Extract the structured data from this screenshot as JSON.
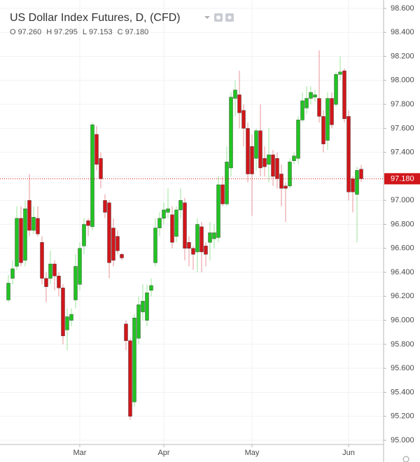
{
  "chart_data": {
    "type": "candlestick",
    "title": "US Dollar Index Futures, D, (CFD)",
    "legend": [
      {
        "key": "O",
        "value": 97.26,
        "label": "97.260"
      },
      {
        "key": "H",
        "value": 97.295,
        "label": "97.295"
      },
      {
        "key": "L",
        "value": 97.153,
        "label": "97.153"
      },
      {
        "key": "C",
        "value": 97.18,
        "label": "97.180"
      }
    ],
    "categories": [
      null,
      null,
      null,
      null,
      null,
      null,
      null,
      null,
      null,
      null,
      null,
      null,
      null,
      null,
      null,
      null,
      null,
      "Mar",
      null,
      null,
      null,
      null,
      null,
      null,
      null,
      null,
      null,
      null,
      null,
      null,
      null,
      null,
      null,
      null,
      null,
      null,
      null,
      "Apr",
      null,
      null,
      null,
      null,
      null,
      null,
      null,
      null,
      null,
      null,
      null,
      null,
      null,
      null,
      null,
      null,
      null,
      null,
      null,
      null,
      "May",
      null,
      null,
      null,
      null,
      null,
      null,
      null,
      null,
      null,
      null,
      null,
      null,
      null,
      null,
      null,
      null,
      null,
      null,
      null,
      null,
      null,
      null,
      "Jun",
      null,
      null,
      null
    ],
    "open": [
      96.17,
      96.35,
      96.45,
      96.85,
      96.5,
      97.0,
      96.75,
      96.85,
      96.65,
      96.35,
      96.35,
      96.47,
      96.37,
      96.27,
      95.92,
      96.0,
      96.17,
      96.3,
      96.62,
      96.83,
      96.78,
      97.55,
      97.35,
      97.0,
      96.98,
      96.77,
      96.7,
      96.55,
      95.97,
      95.83,
      95.32,
      95.85,
      96.07,
      96.0,
      96.25,
      96.48,
      96.77,
      96.85,
      96.9,
      96.88,
      96.7,
      96.92,
      96.98,
      96.65,
      96.6,
      96.57,
      96.78,
      96.62,
      96.65,
      96.68,
      96.69,
      97.13,
      96.97,
      97.27,
      97.85,
      97.88,
      97.75,
      97.6,
      97.45,
      97.35,
      97.58,
      97.35,
      97.3,
      97.38,
      97.35,
      97.22,
      97.12,
      97.12,
      97.33,
      97.35,
      97.67,
      97.77,
      97.85,
      97.86,
      97.85,
      97.7,
      97.5,
      97.85,
      97.8,
      98.05,
      98.08,
      97.7,
      97.18,
      97.05,
      97.26
    ],
    "high": [
      96.38,
      96.5,
      96.95,
      96.95,
      97.0,
      97.22,
      96.95,
      96.95,
      96.7,
      96.4,
      96.58,
      96.5,
      96.4,
      96.3,
      96.1,
      96.1,
      96.55,
      96.65,
      96.85,
      96.85,
      97.65,
      97.62,
      97.4,
      97.05,
      97.0,
      96.85,
      96.75,
      96.56,
      96.0,
      95.85,
      96.05,
      96.2,
      96.3,
      96.3,
      96.35,
      96.85,
      96.9,
      96.98,
      97.1,
      96.95,
      96.95,
      97.1,
      97.02,
      96.7,
      96.62,
      96.85,
      96.82,
      96.65,
      96.82,
      96.8,
      97.2,
      97.2,
      97.45,
      97.9,
      98.0,
      98.08,
      97.8,
      97.65,
      97.55,
      97.6,
      97.8,
      97.45,
      97.6,
      97.42,
      97.4,
      97.3,
      97.15,
      97.35,
      97.4,
      97.7,
      97.9,
      97.95,
      97.95,
      97.92,
      98.25,
      97.75,
      97.9,
      97.9,
      98.07,
      98.2,
      98.1,
      97.75,
      97.2,
      97.28,
      97.295
    ],
    "low": [
      96.15,
      96.3,
      96.42,
      96.45,
      96.45,
      96.7,
      96.72,
      96.7,
      96.3,
      96.15,
      96.3,
      96.25,
      96.2,
      95.8,
      95.75,
      95.95,
      96.1,
      96.25,
      96.55,
      96.7,
      96.75,
      97.25,
      97.1,
      96.85,
      96.35,
      96.45,
      96.55,
      96.5,
      95.75,
      95.17,
      95.28,
      95.8,
      96.0,
      95.95,
      96.2,
      96.45,
      96.7,
      96.8,
      96.85,
      96.6,
      96.65,
      96.85,
      96.5,
      96.45,
      96.42,
      96.4,
      96.4,
      96.45,
      96.5,
      96.6,
      96.65,
      96.95,
      96.95,
      97.2,
      97.7,
      97.6,
      97.45,
      97.15,
      96.87,
      97.25,
      97.2,
      97.2,
      97.15,
      97.12,
      97.1,
      96.95,
      96.82,
      97.1,
      97.3,
      97.3,
      97.65,
      97.72,
      97.8,
      97.82,
      97.65,
      97.4,
      97.42,
      97.6,
      97.78,
      98.0,
      97.65,
      97.0,
      96.9,
      96.65,
      97.153
    ],
    "close": [
      96.31,
      96.43,
      96.85,
      96.48,
      96.93,
      96.75,
      96.86,
      96.72,
      96.35,
      96.28,
      96.47,
      96.37,
      96.27,
      95.87,
      96.03,
      96.05,
      96.45,
      96.6,
      96.8,
      96.79,
      97.63,
      97.3,
      97.18,
      96.9,
      96.48,
      96.5,
      96.58,
      96.52,
      95.83,
      95.2,
      96.02,
      96.13,
      96.16,
      96.23,
      96.29,
      96.77,
      96.85,
      96.92,
      96.93,
      96.65,
      96.92,
      97.0,
      96.6,
      96.6,
      96.55,
      96.8,
      96.57,
      96.55,
      96.73,
      96.73,
      97.13,
      96.97,
      97.32,
      97.86,
      97.92,
      97.73,
      97.6,
      97.22,
      97.22,
      97.58,
      97.27,
      97.28,
      97.38,
      97.2,
      97.18,
      97.1,
      97.1,
      97.32,
      97.37,
      97.67,
      97.83,
      97.85,
      97.9,
      97.88,
      97.7,
      97.47,
      97.85,
      97.63,
      98.05,
      98.07,
      97.68,
      97.07,
      97.07,
      97.25,
      97.18
    ],
    "up_color": "#22c322",
    "down_color": "#d0161a",
    "last_price": {
      "value": 97.18,
      "label": "97.180",
      "color": "#d0161a"
    },
    "ylim": [
      94.965,
      98.67
    ],
    "yticks": [
      {
        "value": 95.0,
        "label": "95.000"
      },
      {
        "value": 95.2,
        "label": "95.200"
      },
      {
        "value": 95.4,
        "label": "95.400"
      },
      {
        "value": 95.6,
        "label": "95.600"
      },
      {
        "value": 95.8,
        "label": "95.800"
      },
      {
        "value": 96.0,
        "label": "96.000"
      },
      {
        "value": 96.2,
        "label": "96.200"
      },
      {
        "value": 96.4,
        "label": "96.400"
      },
      {
        "value": 96.6,
        "label": "96.600"
      },
      {
        "value": 96.8,
        "label": "96.800"
      },
      {
        "value": 97.0,
        "label": "97.000"
      },
      {
        "value": 97.2,
        "label": "97.200"
      },
      {
        "value": 97.4,
        "label": "97.400"
      },
      {
        "value": 97.6,
        "label": "97.600"
      },
      {
        "value": 97.8,
        "label": "97.800"
      },
      {
        "value": 98.0,
        "label": "98.000"
      },
      {
        "value": 98.2,
        "label": "98.200"
      },
      {
        "value": 98.4,
        "label": "98.400"
      },
      {
        "value": 98.6,
        "label": "98.600"
      }
    ],
    "grid": true
  }
}
